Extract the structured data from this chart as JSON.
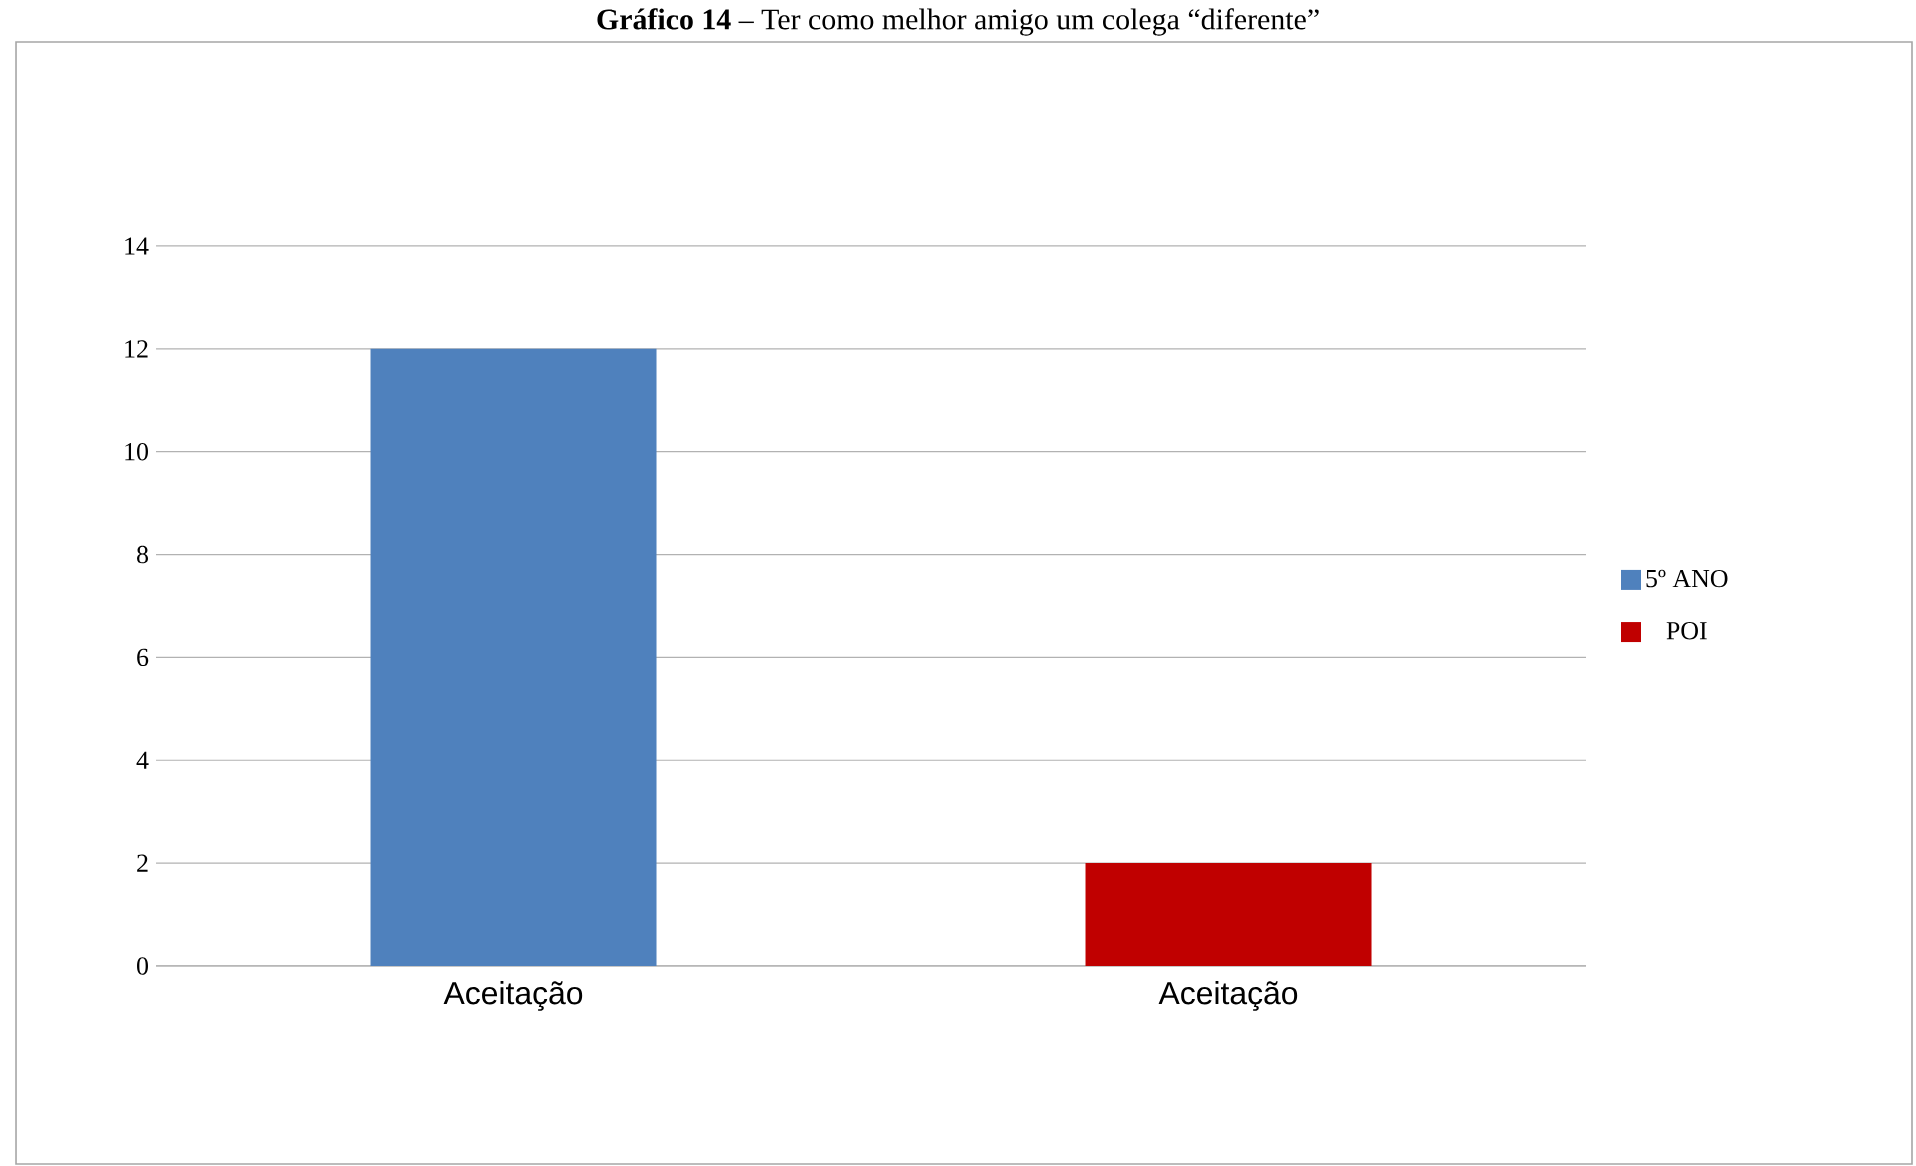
{
  "chart_data": {
    "type": "bar",
    "title": "**Gráfico 14** – Ter como melhor amigo um colega “diferente”",
    "categories": [
      "Aceitação",
      "Aceitação"
    ],
    "series": [
      {
        "name": "5º ANO",
        "color": "#4f81bd",
        "values": [
          12,
          null
        ]
      },
      {
        "name": "POI",
        "color": "#c00000",
        "values": [
          null,
          2
        ]
      }
    ],
    "ylim": [
      0,
      14
    ],
    "yticks": [
      0,
      2,
      4,
      6,
      8,
      10,
      12,
      14
    ],
    "grid": "y",
    "legend": "right"
  }
}
